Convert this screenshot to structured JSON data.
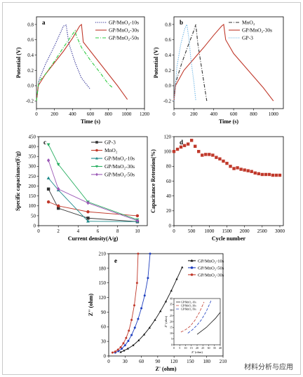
{
  "chart_data": [
    {
      "id": "a",
      "type": "line",
      "panel_label": "a",
      "xlabel": "Time (s)",
      "ylabel": "Potential (V)",
      "xlim": [
        0,
        1200
      ],
      "ylim": [
        -0.3,
        0.9
      ],
      "xticks": [
        "0",
        "200",
        "400",
        "600",
        "800",
        "1000",
        "1200"
      ],
      "yticks": [
        "-0.2",
        "0.0",
        "0.2",
        "0.4",
        "0.6",
        "0.8"
      ],
      "xtick_values": [
        0,
        200,
        400,
        600,
        800,
        1000,
        1200
      ],
      "ytick_values": [
        -0.2,
        0,
        0.2,
        0.4,
        0.6,
        0.8
      ],
      "legend_position": "top-right",
      "series": [
        {
          "name": "GP/MnO₂-10s",
          "color": "#1f1f8c",
          "style": "dotted",
          "x": [
            0,
            30,
            100,
            200,
            300,
            330,
            360,
            430,
            500,
            600
          ],
          "y": [
            -0.2,
            0.08,
            0.28,
            0.52,
            0.78,
            0.79,
            0.55,
            0.3,
            0.1,
            -0.05
          ]
        },
        {
          "name": "GP/MnO₂-30s",
          "color": "#c0392b",
          "style": "solid",
          "x": [
            0,
            20,
            100,
            200,
            300,
            400,
            480,
            500,
            520,
            600,
            700,
            800,
            900,
            1010
          ],
          "y": [
            -0.2,
            0.0,
            0.15,
            0.3,
            0.45,
            0.62,
            0.78,
            0.8,
            0.57,
            0.45,
            0.3,
            0.15,
            0.0,
            -0.18
          ]
        },
        {
          "name": "GP/MnO₂-50s",
          "color": "#2ecc40",
          "style": "dashdot",
          "x": [
            0,
            25,
            100,
            200,
            300,
            400,
            430,
            440,
            500,
            600,
            700,
            800,
            840
          ],
          "y": [
            -0.2,
            0.05,
            0.15,
            0.32,
            0.5,
            0.67,
            0.72,
            0.66,
            0.5,
            0.33,
            0.18,
            0.02,
            -0.02
          ]
        }
      ]
    },
    {
      "id": "b",
      "type": "line",
      "panel_label": "b",
      "xlabel": "Time (s)",
      "ylabel": "Potential (V)",
      "xlim": [
        0,
        1100
      ],
      "ylim": [
        -0.3,
        0.9
      ],
      "xticks": [
        "0",
        "200",
        "400",
        "600",
        "800",
        "1000"
      ],
      "yticks": [
        "-0.2",
        "0.0",
        "0.2",
        "0.4",
        "0.6",
        "0.8"
      ],
      "xtick_values": [
        0,
        200,
        400,
        600,
        800,
        1000
      ],
      "ytick_values": [
        -0.2,
        0,
        0.2,
        0.4,
        0.6,
        0.8
      ],
      "legend_position": "top-right",
      "series": [
        {
          "name": "MnO₂",
          "color": "#333333",
          "style": "dashdot",
          "x": [
            0,
            20,
            80,
            150,
            200,
            220,
            240,
            270,
            300,
            330
          ],
          "y": [
            -0.2,
            0.05,
            0.3,
            0.55,
            0.72,
            0.8,
            0.55,
            0.3,
            0.05,
            -0.2
          ]
        },
        {
          "name": "GP/MnO₂-30s",
          "color": "#c0392b",
          "style": "solid",
          "x": [
            0,
            15,
            100,
            200,
            300,
            400,
            480,
            500,
            520,
            600,
            700,
            800,
            900,
            1000
          ],
          "y": [
            -0.2,
            0.0,
            0.2,
            0.35,
            0.5,
            0.66,
            0.78,
            0.8,
            0.6,
            0.42,
            0.27,
            0.12,
            -0.03,
            -0.2
          ]
        },
        {
          "name": "GP-3",
          "color": "#5dade2",
          "style": "dotted",
          "x": [
            0,
            30,
            70,
            110,
            130,
            150,
            170,
            200,
            220
          ],
          "y": [
            -0.2,
            0.25,
            0.55,
            0.75,
            0.8,
            0.62,
            0.35,
            0.05,
            -0.2
          ]
        }
      ]
    },
    {
      "id": "c",
      "type": "line",
      "panel_label": "c",
      "xlabel": "Current density(A/g)",
      "ylabel": "Specific capacitance(F/g)",
      "xlim": [
        0,
        11
      ],
      "ylim": [
        0,
        450
      ],
      "xticks": [
        "0",
        "2",
        "4",
        "6",
        "8",
        "10"
      ],
      "yticks": [
        "0",
        "50",
        "100",
        "150",
        "200",
        "250",
        "300",
        "350",
        "400",
        "450"
      ],
      "xtick_values": [
        0,
        2,
        4,
        6,
        8,
        10
      ],
      "ytick_values": [
        0,
        50,
        100,
        150,
        200,
        250,
        300,
        350,
        400,
        450
      ],
      "legend_position": "top-right",
      "series": [
        {
          "name": "GP-3",
          "color": "#333333",
          "marker": "square",
          "x": [
            1,
            2,
            5,
            10
          ],
          "y": [
            185,
            88,
            38,
            20
          ]
        },
        {
          "name": "MnO₂",
          "color": "#c0392b",
          "marker": "circle",
          "x": [
            1,
            2,
            5,
            10
          ],
          "y": [
            120,
            100,
            70,
            50
          ]
        },
        {
          "name": "GP/MnO₂-10s",
          "color": "#1f8a8a",
          "marker": "triangle",
          "x": [
            1,
            2,
            5,
            10
          ],
          "y": [
            240,
            180,
            22,
            20
          ]
        },
        {
          "name": "GP/MnO₂-30s",
          "color": "#27ae60",
          "marker": "triangle-down",
          "x": [
            1,
            2,
            5,
            10
          ],
          "y": [
            410,
            310,
            120,
            30
          ]
        },
        {
          "name": "GP/MnO₂-50s",
          "color": "#9b59b6",
          "marker": "diamond",
          "x": [
            1,
            2,
            5,
            10
          ],
          "y": [
            330,
            185,
            115,
            25
          ]
        }
      ]
    },
    {
      "id": "d",
      "type": "scatter",
      "panel_label": "d",
      "xlabel": "Cycle number",
      "ylabel": "Capacitance Retention(%)",
      "xlim": [
        0,
        3100
      ],
      "ylim": [
        0,
        120
      ],
      "xticks": [
        "0",
        "500",
        "1000",
        "1500",
        "2000",
        "2500",
        "3000"
      ],
      "yticks": [
        "0",
        "20",
        "40",
        "60",
        "80",
        "100",
        "120"
      ],
      "xtick_values": [
        0,
        500,
        1000,
        1500,
        2000,
        2500,
        3000
      ],
      "ytick_values": [
        0,
        20,
        40,
        60,
        80,
        100,
        120
      ],
      "series": [
        {
          "name": "",
          "color": "#c0392b",
          "marker": "square",
          "x": [
            0,
            100,
            200,
            300,
            400,
            500,
            600,
            700,
            800,
            900,
            1000,
            1100,
            1200,
            1300,
            1400,
            1500,
            1600,
            1700,
            1800,
            1900,
            2000,
            2100,
            2200,
            2300,
            2400,
            2500,
            2600,
            2700,
            2800,
            2900,
            3000
          ],
          "y": [
            100,
            103,
            106,
            108,
            110,
            115,
            107,
            100,
            95,
            96,
            96,
            95,
            92,
            90,
            87,
            84,
            80,
            77,
            78,
            76,
            75,
            74,
            73,
            71,
            70,
            69,
            69,
            69,
            68,
            68,
            68
          ]
        }
      ]
    },
    {
      "id": "e",
      "type": "line",
      "panel_label": "e",
      "xlabel": "Z' (ohm)",
      "ylabel": "Z'' (ohm)",
      "xlim": [
        0,
        210
      ],
      "ylim": [
        0,
        210
      ],
      "xticks": [
        "0",
        "30",
        "60",
        "90",
        "120",
        "150",
        "180",
        "210"
      ],
      "yticks": [
        "0",
        "30",
        "60",
        "90",
        "120",
        "150",
        "180",
        "210"
      ],
      "xtick_values": [
        0,
        30,
        60,
        90,
        120,
        150,
        180,
        210
      ],
      "ytick_values": [
        0,
        30,
        60,
        90,
        120,
        150,
        180,
        210
      ],
      "legend_position": "top-right",
      "series": [
        {
          "name": "GP/MnO₂-10s",
          "color": "#111111",
          "marker": "triangle",
          "x": [
            22,
            28,
            35,
            45,
            55,
            65,
            75,
            85,
            95,
            105,
            115,
            125,
            135
          ],
          "y": [
            8,
            11,
            15,
            22,
            32,
            44,
            58,
            74,
            92,
            112,
            134,
            158,
            182
          ]
        },
        {
          "name": "GP/MnO₂-50s",
          "color": "#1f3fbf",
          "marker": "circle",
          "x": [
            12,
            18,
            24,
            30,
            36,
            42,
            48,
            54,
            60,
            66,
            72,
            76
          ],
          "y": [
            7,
            10,
            15,
            22,
            31,
            43,
            58,
            76,
            98,
            124,
            160,
            210
          ]
        },
        {
          "name": "GP/MnO₂-30s",
          "color": "#c0392b",
          "marker": "circle",
          "x": [
            7,
            12,
            17,
            22,
            27,
            32,
            37,
            42,
            47,
            52,
            54
          ],
          "y": [
            7,
            9,
            13,
            18,
            26,
            37,
            52,
            74,
            104,
            150,
            210
          ]
        }
      ],
      "inset": {
        "xlabel": "Z' (ohm)",
        "ylabel": "Z'' (ohm)",
        "xticks": [
          "0",
          "5",
          "10",
          "15",
          "20",
          "25",
          "30",
          "35",
          "40"
        ],
        "yticks": [
          "0",
          "5",
          "10",
          "15",
          "20",
          "25",
          "30",
          "35",
          "40"
        ],
        "xtick_values": [
          0,
          5,
          10,
          15,
          20,
          25,
          30,
          35,
          40
        ],
        "ytick_values": [
          0,
          5,
          10,
          15,
          20,
          25,
          30,
          35,
          40
        ],
        "xlim": [
          0,
          40
        ],
        "ylim": [
          0,
          40
        ],
        "series": [
          {
            "name": "GP/MnO₂-10s",
            "color": "#111111",
            "style": "solid",
            "x": [
              20,
              24,
              28,
              32,
              36,
              40
            ],
            "y": [
              9,
              12,
              15,
              19,
              23,
              28
            ]
          },
          {
            "name": "GP/MnO₂-30s",
            "color": "#c0392b",
            "style": "dashed",
            "x": [
              6,
              10,
              14,
              18,
              22,
              26
            ],
            "y": [
              11,
              13,
              16,
              21,
              28,
              37
            ]
          },
          {
            "name": "GP/MnO₂-50s",
            "color": "#1f3fbf",
            "style": "dashed",
            "x": [
              12,
              16,
              20,
              24,
              28,
              32
            ],
            "y": [
              10,
              13,
              17,
              22,
              29,
              38
            ]
          }
        ]
      }
    }
  ],
  "watermark": "材料分析与应用"
}
